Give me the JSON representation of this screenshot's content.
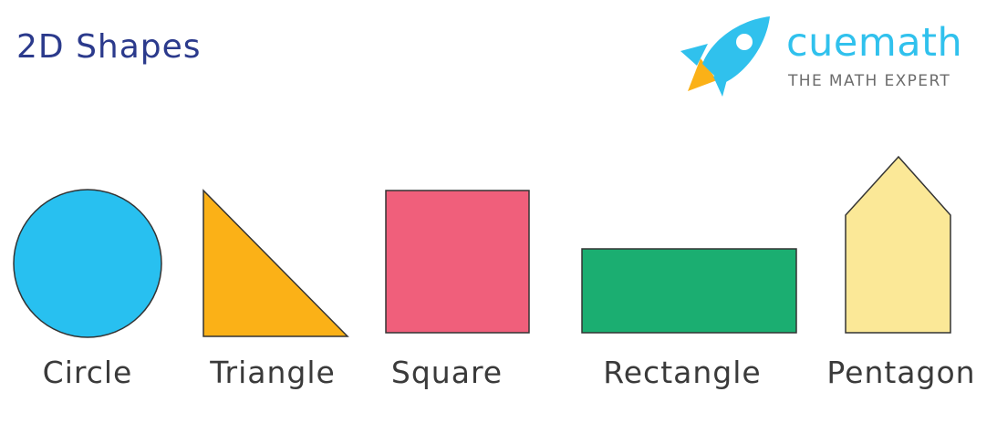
{
  "title": "2D Shapes",
  "logo": {
    "name": "cuemath",
    "tagline": "THE MATH EXPERT",
    "icon": "rocket-icon",
    "colors": {
      "rocket": "#30c1ed",
      "flame": "#fbb117",
      "text": "#30c1ed",
      "tagline": "#6c6c6c"
    }
  },
  "shapes": [
    {
      "name": "Circle",
      "color": "#28c0f0"
    },
    {
      "name": "Triangle",
      "color": "#fbb117"
    },
    {
      "name": "Square",
      "color": "#f05f7b"
    },
    {
      "name": "Rectangle",
      "color": "#1bae71"
    },
    {
      "name": "Pentagon",
      "color": "#fbe897"
    }
  ],
  "colors": {
    "title": "#2b3a8c",
    "outline": "#333333",
    "label": "#3a3a3a"
  }
}
